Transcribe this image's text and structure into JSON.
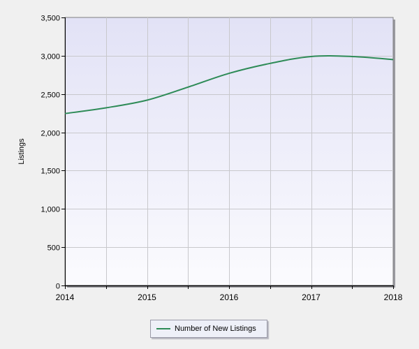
{
  "chart_data": {
    "type": "line",
    "title": "",
    "xlabel": "",
    "ylabel": "Listings",
    "x_ticks": [
      "2014",
      "2015",
      "2016",
      "2017",
      "2018"
    ],
    "xlim": [
      2014,
      2018
    ],
    "ylim": [
      0,
      3500
    ],
    "y_ticks": [
      0,
      500,
      1000,
      1500,
      2000,
      2500,
      3000,
      3500
    ],
    "y_tick_labels": [
      "0",
      "500",
      "1,000",
      "1,500",
      "2,000",
      "2,500",
      "3,000",
      "3,500"
    ],
    "grid": true,
    "legend_position": "bottom-center",
    "series": [
      {
        "name": "Number of New Listings",
        "color": "#2e8b57",
        "x": [
          2014,
          2014.5,
          2015,
          2015.5,
          2016,
          2016.5,
          2017,
          2017.5,
          2018
        ],
        "y": [
          2245,
          2320,
          2420,
          2590,
          2770,
          2900,
          2990,
          2990,
          2950
        ]
      }
    ]
  }
}
